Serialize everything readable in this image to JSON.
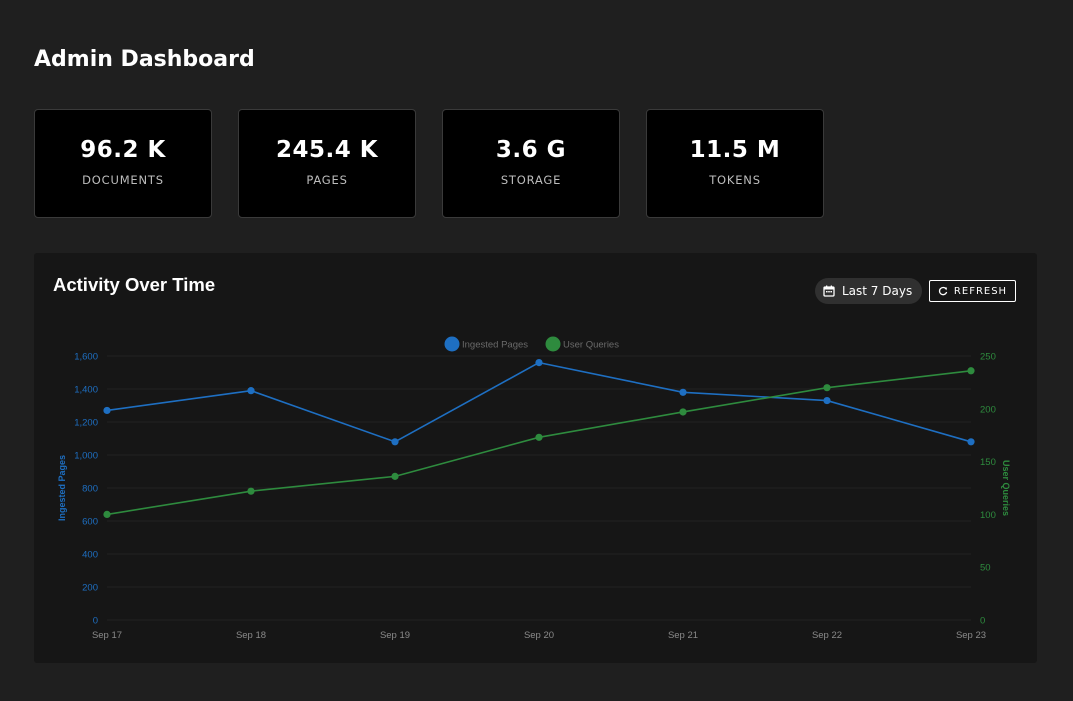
{
  "page": {
    "title": "Admin Dashboard"
  },
  "stats": [
    {
      "value": "96.2 K",
      "label": "DOCUMENTS"
    },
    {
      "value": "245.4 K",
      "label": "PAGES"
    },
    {
      "value": "3.6 G",
      "label": "STORAGE"
    },
    {
      "value": "11.5 M",
      "label": "TOKENS"
    }
  ],
  "activity": {
    "title": "Activity Over Time",
    "range_label": "Last 7 Days",
    "range_icon": "calendar-icon",
    "refresh_label": "REFRESH",
    "refresh_icon": "refresh-icon"
  },
  "chart_data": {
    "type": "line",
    "x": [
      "Sep 17",
      "Sep 18",
      "Sep 19",
      "Sep 20",
      "Sep 21",
      "Sep 22",
      "Sep 23"
    ],
    "series": [
      {
        "name": "Ingested Pages",
        "axis": "left",
        "color": "#1e6fc2",
        "values": [
          1270,
          1390,
          1080,
          1560,
          1380,
          1330,
          1080
        ]
      },
      {
        "name": "User Queries",
        "axis": "right",
        "color": "#2e8b3e",
        "values": [
          100,
          122,
          136,
          173,
          197,
          220,
          236
        ]
      }
    ],
    "y_left": {
      "label": "Ingested Pages",
      "min": 0,
      "max": 1600,
      "ticks": [
        0,
        200,
        400,
        600,
        800,
        1000,
        1200,
        1400,
        1600
      ],
      "tick_labels": [
        "0",
        "200",
        "400",
        "600",
        "800",
        "1,000",
        "1,200",
        "1,400",
        "1,600"
      ]
    },
    "y_right": {
      "label": "User Queries",
      "min": 0,
      "max": 250,
      "ticks": [
        0,
        50,
        100,
        150,
        200,
        250
      ],
      "tick_labels": [
        "0",
        "50",
        "100",
        "150",
        "200",
        "250"
      ]
    },
    "grid": true,
    "legend_position": "top-center"
  }
}
